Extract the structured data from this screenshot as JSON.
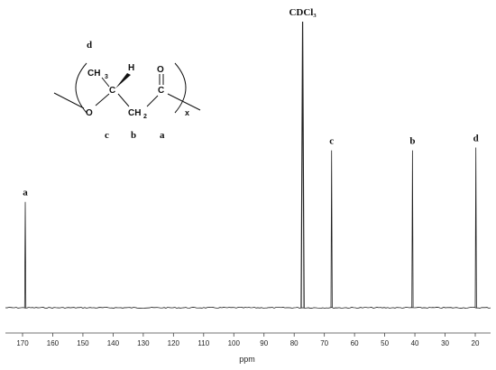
{
  "chart_data": {
    "type": "line",
    "xlabel": "ppm",
    "x_reversed": true,
    "xlim": [
      175,
      15
    ],
    "x_ticks": [
      170,
      160,
      150,
      140,
      130,
      120,
      110,
      100,
      90,
      80,
      70,
      60,
      50,
      40,
      30,
      20
    ],
    "grid": false,
    "legend": "none",
    "peaks": [
      {
        "label": "a",
        "ppm": 169.1,
        "relative_height": 0.37
      },
      {
        "label": "CDCl₃",
        "ppm": 77.2,
        "relative_height": 1.0
      },
      {
        "label": "c",
        "ppm": 67.6,
        "relative_height": 0.55
      },
      {
        "label": "b",
        "ppm": 40.8,
        "relative_height": 0.55
      },
      {
        "label": "d",
        "ppm": 19.8,
        "relative_height": 0.56
      }
    ]
  },
  "structure": {
    "atom_ch3": "CH",
    "atom_ch3_sub": "3",
    "atom_h": "H",
    "atom_c1": "C",
    "atom_o_ester": "O",
    "atom_ch2": "CH",
    "atom_ch2_sub": "2",
    "atom_c2": "C",
    "atom_o_carbonyl": "O",
    "repeat_x": "x",
    "letter_d": "d",
    "letter_c": "c",
    "letter_b": "b",
    "letter_a": "a"
  }
}
